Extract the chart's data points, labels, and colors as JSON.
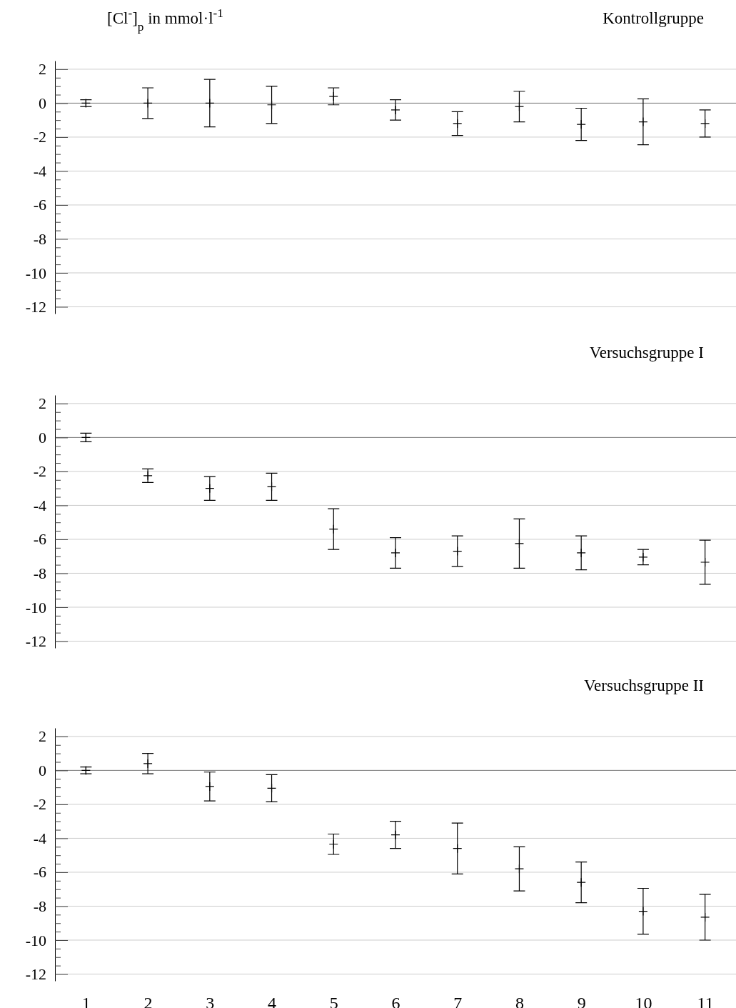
{
  "chart_data": [
    {
      "type": "scatter",
      "title": "Kontrollgruppe",
      "ylabel": "[Cl$^{-}$]$_{p}$ in mmol·l$^{-1}$",
      "tick_labels": "y",
      "marker": "cross",
      "grid": "y",
      "categories": [
        null,
        null,
        null,
        null,
        null,
        null,
        null,
        null,
        null,
        null,
        null
      ],
      "ylim": [
        -12.4,
        2.5
      ],
      "yticks": [
        2,
        {
          "value": 1.5,
          "label": null
        },
        {
          "value": 1,
          "label": null
        },
        {
          "value": 0.5,
          "label": null
        },
        0,
        {
          "value": -0.5,
          "label": null
        },
        {
          "value": -1,
          "label": null
        },
        {
          "value": -1.5,
          "label": null
        },
        -2,
        {
          "value": -2.5,
          "label": null
        },
        {
          "value": -3,
          "label": null
        },
        {
          "value": -3.5,
          "label": null
        },
        -4,
        {
          "value": -4.5,
          "label": null
        },
        {
          "value": -5,
          "label": null
        },
        {
          "value": -5.5,
          "label": null
        },
        -6,
        {
          "value": -6.5,
          "label": null
        },
        {
          "value": -7,
          "label": null
        },
        {
          "value": -7.5,
          "label": null
        },
        -8,
        {
          "value": -8.5,
          "label": null
        },
        {
          "value": -9,
          "label": null
        },
        {
          "value": -9.5,
          "label": null
        },
        -10,
        {
          "value": -10.5,
          "label": null
        },
        {
          "value": -11,
          "label": null
        },
        {
          "value": -11.5,
          "label": null
        },
        -12
      ],
      "ref_lines": [
        {
          "axis": "y",
          "value": 0,
          "color": "#808080"
        }
      ],
      "series": [
        {
          "color": "#000000",
          "values": [
            0,
            0,
            0,
            -0.1,
            0.4,
            -0.4,
            -1.2,
            -0.2,
            -1.25,
            -1.1,
            -1.2
          ],
          "errors": [
            0.2,
            0.9,
            1.4,
            1.1,
            0.5,
            0.6,
            0.7,
            0.9,
            0.95,
            1.35,
            0.8
          ]
        }
      ]
    },
    {
      "type": "scatter",
      "title": "Versuchsgruppe I",
      "tick_labels": "y",
      "marker": "cross",
      "grid": "y",
      "categories": [
        null,
        null,
        null,
        null,
        null,
        null,
        null,
        null,
        null,
        null,
        null
      ],
      "ylim": [
        -12.4,
        2.5
      ],
      "yticks": [
        2,
        {
          "value": 1.5,
          "label": null
        },
        {
          "value": 1,
          "label": null
        },
        {
          "value": 0.5,
          "label": null
        },
        0,
        {
          "value": -0.5,
          "label": null
        },
        {
          "value": -1,
          "label": null
        },
        {
          "value": -1.5,
          "label": null
        },
        -2,
        {
          "value": -2.5,
          "label": null
        },
        {
          "value": -3,
          "label": null
        },
        {
          "value": -3.5,
          "label": null
        },
        -4,
        {
          "value": -4.5,
          "label": null
        },
        {
          "value": -5,
          "label": null
        },
        {
          "value": -5.5,
          "label": null
        },
        -6,
        {
          "value": -6.5,
          "label": null
        },
        {
          "value": -7,
          "label": null
        },
        {
          "value": -7.5,
          "label": null
        },
        -8,
        {
          "value": -8.5,
          "label": null
        },
        {
          "value": -9,
          "label": null
        },
        {
          "value": -9.5,
          "label": null
        },
        -10,
        {
          "value": -10.5,
          "label": null
        },
        {
          "value": -11,
          "label": null
        },
        {
          "value": -11.5,
          "label": null
        },
        -12
      ],
      "ref_lines": [
        {
          "axis": "y",
          "value": 0,
          "color": "#808080"
        }
      ],
      "series": [
        {
          "color": "#000000",
          "values": [
            0,
            -2.25,
            -3.0,
            -2.9,
            -5.4,
            -6.8,
            -6.7,
            -6.25,
            -6.8,
            -7.05,
            -7.35
          ],
          "errors": [
            0.25,
            0.4,
            0.7,
            0.8,
            1.2,
            0.9,
            0.9,
            1.45,
            1.0,
            0.45,
            1.3
          ]
        }
      ]
    },
    {
      "type": "scatter",
      "title": "Versuchsgruppe II",
      "marker": "cross",
      "grid": "y",
      "categories": [
        "1",
        "2",
        "3",
        "4",
        "5",
        "6",
        "7",
        "8",
        "9",
        "10",
        "11"
      ],
      "ylim": [
        -12.4,
        2.5
      ],
      "yticks": [
        2,
        {
          "value": 1.5,
          "label": null
        },
        {
          "value": 1,
          "label": null
        },
        {
          "value": 0.5,
          "label": null
        },
        0,
        {
          "value": -0.5,
          "label": null
        },
        {
          "value": -1,
          "label": null
        },
        {
          "value": -1.5,
          "label": null
        },
        -2,
        {
          "value": -2.5,
          "label": null
        },
        {
          "value": -3,
          "label": null
        },
        {
          "value": -3.5,
          "label": null
        },
        -4,
        {
          "value": -4.5,
          "label": null
        },
        {
          "value": -5,
          "label": null
        },
        {
          "value": -5.5,
          "label": null
        },
        -6,
        {
          "value": -6.5,
          "label": null
        },
        {
          "value": -7,
          "label": null
        },
        {
          "value": -7.5,
          "label": null
        },
        -8,
        {
          "value": -8.5,
          "label": null
        },
        {
          "value": -9,
          "label": null
        },
        {
          "value": -9.5,
          "label": null
        },
        -10,
        {
          "value": -10.5,
          "label": null
        },
        {
          "value": -11,
          "label": null
        },
        {
          "value": -11.5,
          "label": null
        },
        -12
      ],
      "ref_lines": [
        {
          "axis": "y",
          "value": 0,
          "color": "#808080"
        }
      ],
      "series": [
        {
          "color": "#000000",
          "values": [
            0,
            0.4,
            -0.95,
            -1.05,
            -4.35,
            -3.8,
            -4.6,
            -5.8,
            -6.6,
            -8.3,
            -8.65
          ],
          "errors": [
            0.2,
            0.6,
            0.85,
            0.8,
            0.6,
            0.8,
            1.5,
            1.3,
            1.2,
            1.35,
            1.35
          ]
        }
      ]
    }
  ]
}
